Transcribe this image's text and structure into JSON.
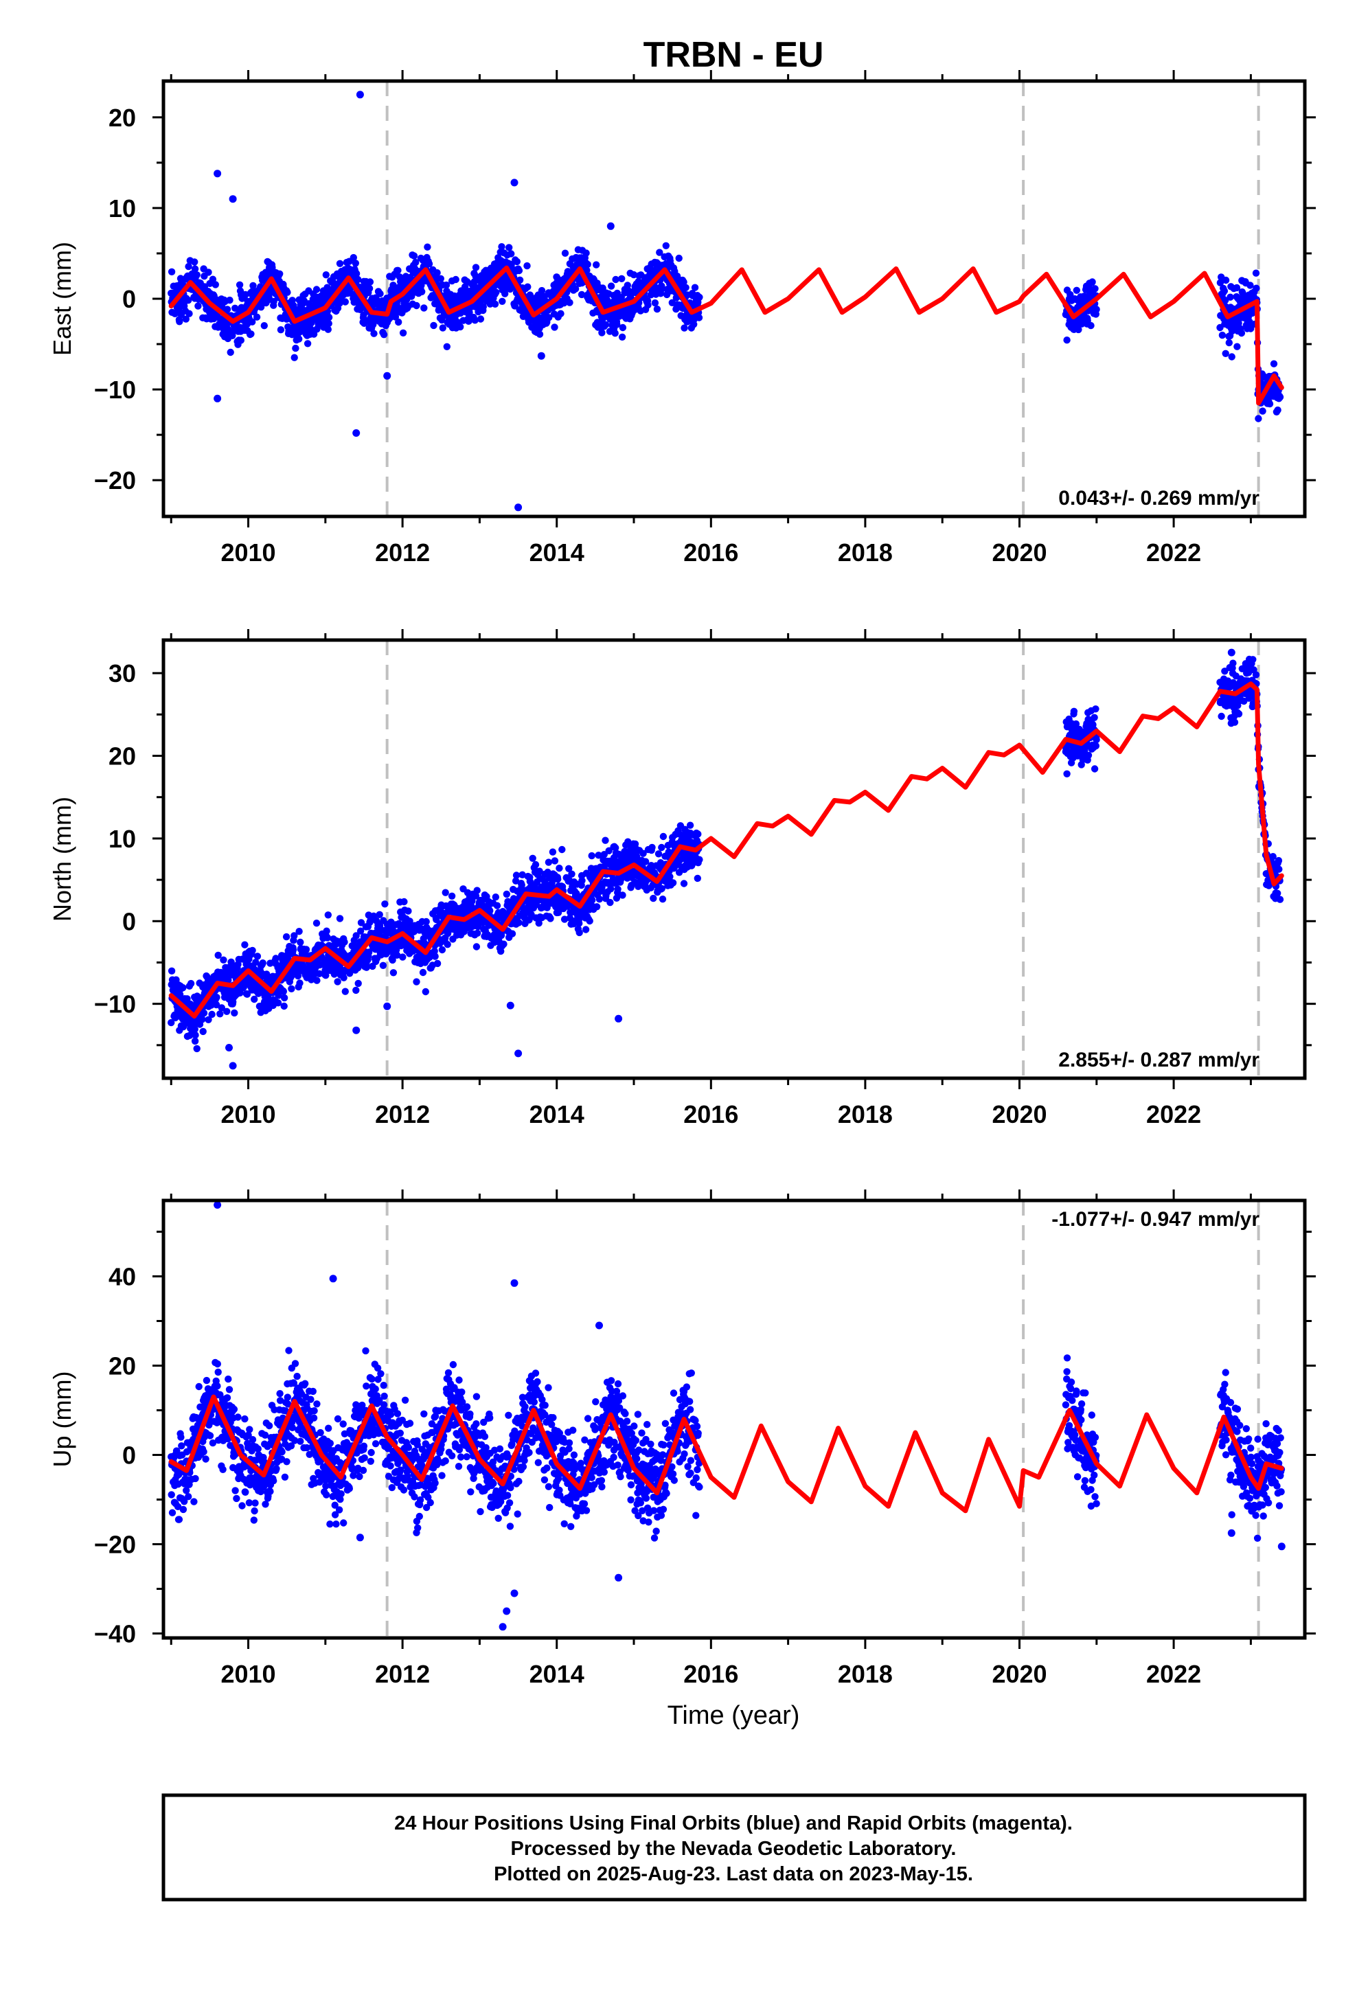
{
  "title": "TRBN - EU",
  "xlabel": "Time (year)",
  "footer": {
    "line1": "24 Hour Positions Using Final Orbits (blue) and Rapid Orbits (magenta).",
    "line2": "Processed by the Nevada Geodetic Laboratory.",
    "line3": "Plotted on 2025-Aug-23. Last data on 2023-May-15."
  },
  "colors": {
    "data": "#0000ff",
    "model": "#ff0000",
    "break_line": "#c0c0c0"
  },
  "chart_data": [
    {
      "type": "scatter",
      "panel": "east",
      "ylabel": "East (mm)",
      "rate": "0.043+/- 0.269 mm/yr",
      "xlim": [
        2008.9,
        2023.7
      ],
      "ylim": [
        -24,
        24
      ],
      "xticks": [
        2010,
        2012,
        2014,
        2016,
        2018,
        2020,
        2022
      ],
      "yticks": [
        -20,
        -10,
        0,
        10,
        20
      ],
      "grid": false,
      "breaks": [
        2011.8,
        2020.05,
        2023.1
      ],
      "model_line": [
        [
          2009.0,
          -0.8
        ],
        [
          2009.25,
          1.8
        ],
        [
          2009.5,
          -0.5
        ],
        [
          2009.8,
          -2.5
        ],
        [
          2010.0,
          -1.5
        ],
        [
          2010.3,
          2.2
        ],
        [
          2010.6,
          -2.5
        ],
        [
          2011.0,
          -1.0
        ],
        [
          2011.3,
          2.3
        ],
        [
          2011.6,
          -1.5
        ],
        [
          2011.8,
          -1.7
        ],
        [
          2011.85,
          -0.3
        ],
        [
          2012.0,
          0.5
        ],
        [
          2012.3,
          3.2
        ],
        [
          2012.6,
          -1.5
        ],
        [
          2012.9,
          -0.3
        ],
        [
          2013.35,
          3.4
        ],
        [
          2013.7,
          -1.8
        ],
        [
          2014.0,
          0.0
        ],
        [
          2014.3,
          3.3
        ],
        [
          2014.6,
          -1.5
        ],
        [
          2015.0,
          -0.3
        ],
        [
          2015.4,
          3.2
        ],
        [
          2015.75,
          -1.5
        ],
        [
          2016.0,
          -0.5
        ],
        [
          2016.4,
          3.2
        ],
        [
          2016.7,
          -1.5
        ],
        [
          2017.0,
          0.0
        ],
        [
          2017.4,
          3.2
        ],
        [
          2017.7,
          -1.5
        ],
        [
          2018.0,
          0.2
        ],
        [
          2018.4,
          3.3
        ],
        [
          2018.7,
          -1.5
        ],
        [
          2019.0,
          0.0
        ],
        [
          2019.4,
          3.3
        ],
        [
          2019.7,
          -1.5
        ],
        [
          2020.0,
          -0.3
        ],
        [
          2020.05,
          0.3
        ],
        [
          2020.35,
          2.7
        ],
        [
          2020.7,
          -2.0
        ],
        [
          2021.0,
          0.0
        ],
        [
          2021.35,
          2.7
        ],
        [
          2021.7,
          -2.0
        ],
        [
          2022.0,
          -0.3
        ],
        [
          2022.4,
          2.8
        ],
        [
          2022.7,
          -2.0
        ],
        [
          2023.08,
          -0.3
        ],
        [
          2023.1,
          -11.5
        ],
        [
          2023.3,
          -8.5
        ],
        [
          2023.4,
          -9.8
        ]
      ],
      "data_segments": [
        [
          2009.0,
          2015.85,
          "east"
        ],
        [
          2020.6,
          2021.0,
          "east"
        ],
        [
          2022.6,
          2023.1,
          "east"
        ],
        [
          2023.1,
          2023.38,
          "east_post"
        ]
      ],
      "outliers": [
        [
          2009.6,
          13.8
        ],
        [
          2009.8,
          11.0
        ],
        [
          2009.6,
          -11.0
        ],
        [
          2011.45,
          22.5
        ],
        [
          2011.4,
          -14.8
        ],
        [
          2013.45,
          12.8
        ],
        [
          2013.5,
          -23.0
        ],
        [
          2014.7,
          8.0
        ],
        [
          2011.8,
          -8.5
        ],
        [
          2013.8,
          -6.3
        ]
      ]
    },
    {
      "type": "scatter",
      "panel": "north",
      "ylabel": "North (mm)",
      "rate": "2.855+/- 0.287 mm/yr",
      "xlim": [
        2008.9,
        2023.7
      ],
      "ylim": [
        -19,
        34
      ],
      "xticks": [
        2010,
        2012,
        2014,
        2016,
        2018,
        2020,
        2022
      ],
      "yticks": [
        -10,
        0,
        10,
        20,
        30
      ],
      "grid": false,
      "breaks": [
        2011.8,
        2020.05,
        2023.1
      ],
      "model_line": [
        [
          2009.0,
          -9.0
        ],
        [
          2009.3,
          -11.5
        ],
        [
          2009.6,
          -7.5
        ],
        [
          2009.8,
          -7.8
        ],
        [
          2010.0,
          -6.0
        ],
        [
          2010.3,
          -8.5
        ],
        [
          2010.6,
          -4.5
        ],
        [
          2010.8,
          -4.7
        ],
        [
          2011.0,
          -3.3
        ],
        [
          2011.3,
          -5.5
        ],
        [
          2011.6,
          -2.0
        ],
        [
          2011.8,
          -2.5
        ],
        [
          2012.0,
          -1.5
        ],
        [
          2012.3,
          -3.8
        ],
        [
          2012.6,
          0.5
        ],
        [
          2012.8,
          0.2
        ],
        [
          2013.0,
          1.3
        ],
        [
          2013.3,
          -1.0
        ],
        [
          2013.6,
          3.3
        ],
        [
          2013.9,
          3.0
        ],
        [
          2014.0,
          3.8
        ],
        [
          2014.3,
          1.8
        ],
        [
          2014.6,
          6.0
        ],
        [
          2014.8,
          5.8
        ],
        [
          2015.0,
          6.8
        ],
        [
          2015.3,
          4.8
        ],
        [
          2015.6,
          9.0
        ],
        [
          2015.8,
          8.6
        ],
        [
          2016.0,
          10.0
        ],
        [
          2016.3,
          7.8
        ],
        [
          2016.6,
          11.8
        ],
        [
          2016.8,
          11.5
        ],
        [
          2017.0,
          12.7
        ],
        [
          2017.3,
          10.5
        ],
        [
          2017.6,
          14.6
        ],
        [
          2017.8,
          14.4
        ],
        [
          2018.0,
          15.6
        ],
        [
          2018.3,
          13.4
        ],
        [
          2018.6,
          17.5
        ],
        [
          2018.8,
          17.2
        ],
        [
          2019.0,
          18.5
        ],
        [
          2019.3,
          16.2
        ],
        [
          2019.6,
          20.4
        ],
        [
          2019.8,
          20.1
        ],
        [
          2020.0,
          21.3
        ],
        [
          2020.3,
          18.0
        ],
        [
          2020.6,
          22.0
        ],
        [
          2020.8,
          21.5
        ],
        [
          2021.0,
          23.0
        ],
        [
          2021.3,
          20.5
        ],
        [
          2021.6,
          24.8
        ],
        [
          2021.8,
          24.5
        ],
        [
          2022.0,
          25.8
        ],
        [
          2022.3,
          23.5
        ],
        [
          2022.6,
          27.8
        ],
        [
          2022.8,
          27.5
        ],
        [
          2023.0,
          28.7
        ],
        [
          2023.08,
          28.0
        ],
        [
          2023.1,
          19.0
        ],
        [
          2023.2,
          8.0
        ],
        [
          2023.3,
          4.5
        ],
        [
          2023.4,
          5.5
        ]
      ],
      "data_segments": [
        [
          2009.0,
          2015.85,
          "north"
        ],
        [
          2020.6,
          2021.0,
          "north"
        ],
        [
          2022.6,
          2023.1,
          "north"
        ],
        [
          2023.1,
          2023.38,
          "north_post"
        ]
      ],
      "outliers": [
        [
          2009.8,
          -17.5
        ],
        [
          2009.75,
          -15.3
        ],
        [
          2011.4,
          -13.2
        ],
        [
          2013.5,
          -16.0
        ],
        [
          2013.4,
          -10.2
        ],
        [
          2014.8,
          -11.8
        ],
        [
          2011.8,
          -10.3
        ],
        [
          2022.75,
          32.5
        ]
      ]
    },
    {
      "type": "scatter",
      "panel": "up",
      "ylabel": "Up (mm)",
      "rate": "-1.077+/- 0.947 mm/yr",
      "xlim": [
        2008.9,
        2023.7
      ],
      "ylim": [
        -41,
        57
      ],
      "xticks": [
        2010,
        2012,
        2014,
        2016,
        2018,
        2020,
        2022
      ],
      "yticks": [
        -40,
        -20,
        0,
        20,
        40
      ],
      "grid": false,
      "breaks": [
        2011.8,
        2020.05,
        2023.1
      ],
      "model_line": [
        [
          2009.0,
          -1.5
        ],
        [
          2009.2,
          -3.5
        ],
        [
          2009.55,
          13.0
        ],
        [
          2009.9,
          0.0
        ],
        [
          2010.2,
          -4.5
        ],
        [
          2010.6,
          12.0
        ],
        [
          2010.95,
          0.0
        ],
        [
          2011.2,
          -5.0
        ],
        [
          2011.6,
          11.0
        ],
        [
          2011.8,
          4.0
        ],
        [
          2012.0,
          0.0
        ],
        [
          2012.25,
          -5.5
        ],
        [
          2012.65,
          11.0
        ],
        [
          2013.0,
          -1.0
        ],
        [
          2013.3,
          -6.5
        ],
        [
          2013.7,
          10.0
        ],
        [
          2014.0,
          -2.0
        ],
        [
          2014.3,
          -7.5
        ],
        [
          2014.7,
          9.0
        ],
        [
          2015.0,
          -3.0
        ],
        [
          2015.3,
          -8.5
        ],
        [
          2015.65,
          8.0
        ],
        [
          2016.0,
          -5.0
        ],
        [
          2016.3,
          -9.5
        ],
        [
          2016.65,
          6.5
        ],
        [
          2017.0,
          -6.0
        ],
        [
          2017.3,
          -10.5
        ],
        [
          2017.65,
          6.0
        ],
        [
          2018.0,
          -7.0
        ],
        [
          2018.3,
          -11.5
        ],
        [
          2018.65,
          5.0
        ],
        [
          2019.0,
          -8.5
        ],
        [
          2019.3,
          -12.5
        ],
        [
          2019.6,
          3.5
        ],
        [
          2020.0,
          -11.5
        ],
        [
          2020.05,
          -3.5
        ],
        [
          2020.25,
          -5.0
        ],
        [
          2020.65,
          10.0
        ],
        [
          2021.0,
          -2.0
        ],
        [
          2021.3,
          -7.0
        ],
        [
          2021.65,
          9.0
        ],
        [
          2022.0,
          -3.0
        ],
        [
          2022.3,
          -8.5
        ],
        [
          2022.65,
          8.5
        ],
        [
          2023.0,
          -5.0
        ],
        [
          2023.1,
          -7.5
        ],
        [
          2023.2,
          -2.0
        ],
        [
          2023.4,
          -3.0
        ]
      ],
      "data_segments": [
        [
          2009.0,
          2015.85,
          "up"
        ],
        [
          2020.6,
          2021.0,
          "up"
        ],
        [
          2022.6,
          2023.4,
          "up"
        ]
      ],
      "outliers": [
        [
          2009.6,
          56.0
        ],
        [
          2011.1,
          39.5
        ],
        [
          2013.45,
          38.5
        ],
        [
          2014.55,
          29.0
        ],
        [
          2014.8,
          -27.5
        ],
        [
          2013.3,
          -38.5
        ],
        [
          2013.35,
          -35.0
        ],
        [
          2013.45,
          -31.0
        ],
        [
          2023.4,
          -20.5
        ],
        [
          2011.45,
          -18.5
        ],
        [
          2022.75,
          -17.5
        ]
      ]
    }
  ]
}
